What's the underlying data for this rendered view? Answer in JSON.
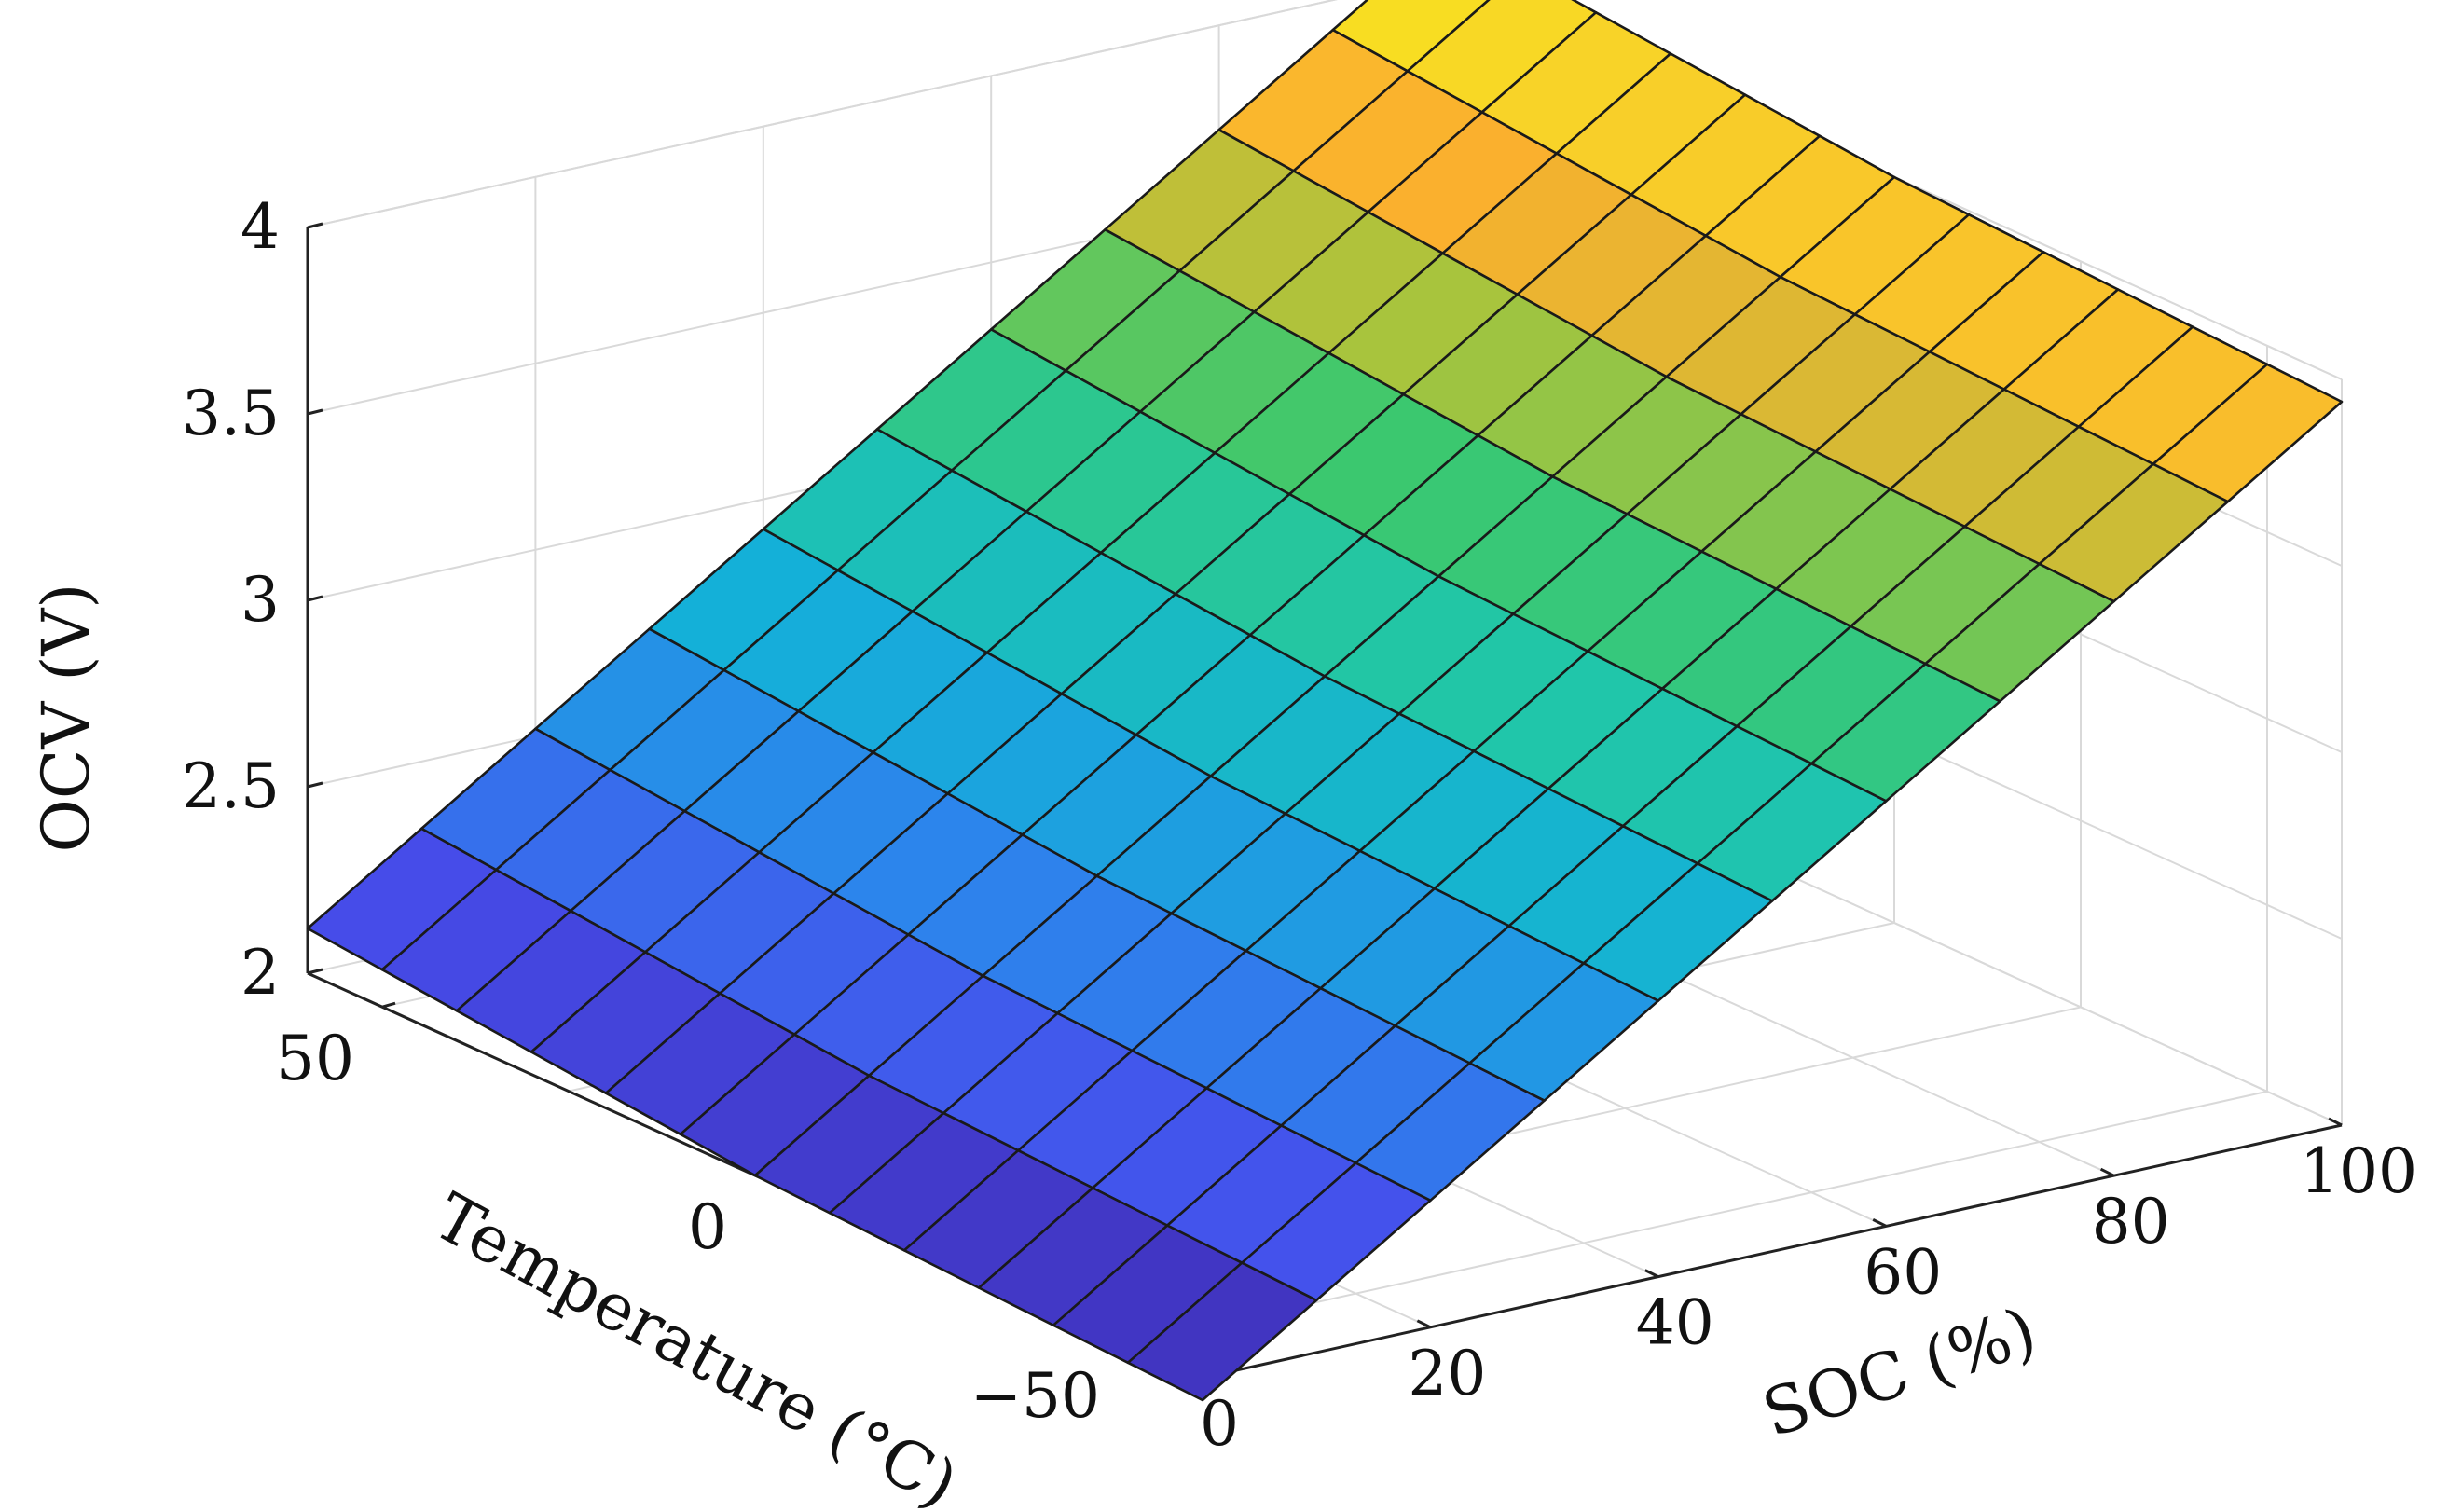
{
  "chart_data": {
    "type": "surface3d",
    "title": "",
    "xlabel": "SOC (%)",
    "ylabel": "Temperature (°C)",
    "zlabel": "OCV (V)",
    "xlim": [
      0,
      100
    ],
    "ylim": [
      -50,
      60
    ],
    "zlim": [
      2,
      4
    ],
    "xticks": [
      "0",
      "20",
      "40",
      "60",
      "80",
      "100"
    ],
    "yticks": [
      "50",
      "0",
      "−50"
    ],
    "zticks": [
      "2",
      "2.5",
      "3",
      "3.5",
      "4"
    ],
    "grid": true,
    "colormap": "parula",
    "soc": [
      0,
      10,
      20,
      30,
      40,
      50,
      60,
      70,
      80,
      90,
      100
    ],
    "temperature": [
      60,
      50,
      40,
      30,
      20,
      10,
      0,
      -10,
      -20,
      -30,
      -40,
      -50,
      -60
    ],
    "ocv_rows": [
      [
        2.12,
        2.32,
        2.52,
        2.72,
        2.92,
        3.12,
        3.32,
        3.52,
        3.72,
        3.92,
        4.12
      ],
      [
        2.1,
        2.3,
        2.5,
        2.7,
        2.9,
        3.1,
        3.3,
        3.5,
        3.7,
        3.9,
        4.1
      ],
      [
        2.08,
        2.28,
        2.48,
        2.68,
        2.88,
        3.08,
        3.28,
        3.48,
        3.68,
        3.88,
        4.08
      ],
      [
        2.06,
        2.26,
        2.46,
        2.66,
        2.86,
        3.06,
        3.26,
        3.46,
        3.66,
        3.86,
        4.06
      ],
      [
        2.04,
        2.24,
        2.44,
        2.64,
        2.84,
        3.04,
        3.24,
        3.44,
        3.64,
        3.84,
        4.04
      ],
      [
        2.02,
        2.22,
        2.42,
        2.62,
        2.82,
        3.02,
        3.22,
        3.42,
        3.62,
        3.82,
        4.02
      ],
      [
        2.0,
        2.2,
        2.4,
        2.6,
        2.8,
        3.0,
        3.2,
        3.4,
        3.6,
        3.8,
        4.0
      ],
      [
        1.99,
        2.19,
        2.39,
        2.59,
        2.79,
        2.99,
        3.19,
        3.39,
        3.59,
        3.79,
        3.99
      ],
      [
        1.98,
        2.18,
        2.38,
        2.58,
        2.78,
        2.98,
        3.18,
        3.38,
        3.58,
        3.78,
        3.98
      ],
      [
        1.97,
        2.17,
        2.37,
        2.57,
        2.77,
        2.97,
        3.17,
        3.37,
        3.57,
        3.77,
        3.97
      ],
      [
        1.96,
        2.16,
        2.36,
        2.56,
        2.76,
        2.96,
        3.16,
        3.36,
        3.56,
        3.76,
        3.96
      ],
      [
        1.95,
        2.15,
        2.35,
        2.55,
        2.75,
        2.95,
        3.15,
        3.35,
        3.55,
        3.75,
        3.95
      ],
      [
        1.94,
        2.14,
        2.34,
        2.54,
        2.74,
        2.94,
        3.14,
        3.34,
        3.54,
        3.74,
        3.94
      ]
    ]
  }
}
